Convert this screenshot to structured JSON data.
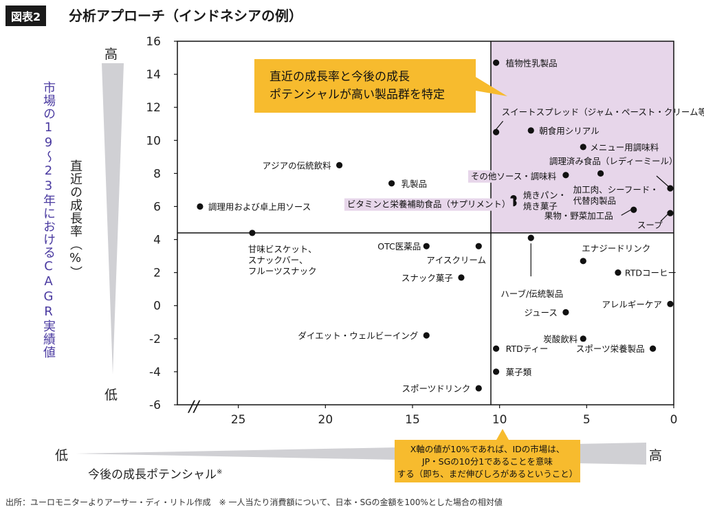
{
  "header": {
    "figure_label": "図表2",
    "title": "分析アプローチ（インドネシアの例）"
  },
  "footer": {
    "text": "出所：ユーロモニターよりアーサー・ディ・リトル作成　※ 一人当たり消費額について、日本・SGの金額を100%とした場合の相対値"
  },
  "chart_data": {
    "type": "scatter",
    "ylabel": "直近の成長率（%）",
    "ylabel_outer": "市場の19〜23年におけるCAGR実績値",
    "xlabel": "今後の成長ポテンシャル",
    "xlabel_note": "※",
    "xlim": [
      28,
      0
    ],
    "ylim": [
      -6,
      16
    ],
    "x_reversed": true,
    "x_ticks": [
      25,
      20,
      15,
      10,
      5,
      0
    ],
    "y_ticks": [
      16,
      14,
      12,
      10,
      8,
      6,
      4,
      2,
      0,
      -2,
      -4,
      -6
    ],
    "axis_break": "//",
    "y_high": "高",
    "y_low": "低",
    "x_low": "低",
    "x_high": "高",
    "grid": false,
    "divider_x": 10.5,
    "divider_y": 4.4,
    "highlight_quadrant": "top-right",
    "highlight_color": "#e7d6ea",
    "point_color": "#111111",
    "callout_color": "#f7bb2e",
    "callouts": [
      "直近の成長率と今後の成長ポテンシャルが高い製品群を特定",
      "X軸の値が10%であれば、IDの市場は、JP・SGの10分1であることを意味する（即ち、まだ伸びしろがあるということ）"
    ],
    "points": [
      {
        "name": "植物性乳製品",
        "x": 10.2,
        "y": 14.7
      },
      {
        "name": "スイートスプレッド（ジャム・ペースト・クリーム等）",
        "x": 10.2,
        "y": 10.5
      },
      {
        "name": "朝食用シリアル",
        "x": 8.2,
        "y": 10.6
      },
      {
        "name": "メニュー用調味料",
        "x": 5.2,
        "y": 9.6
      },
      {
        "name": "調理済み食品（レディーミール）",
        "x": 0.2,
        "y": 7.1
      },
      {
        "name": "その他ソース・調味料",
        "x": 6.2,
        "y": 7.9
      },
      {
        "name": "加工肉、シーフード・代替肉製品",
        "x": 4.2,
        "y": 8.0
      },
      {
        "name": "焼きパン・焼き菓子",
        "x": 9.2,
        "y": 6.5
      },
      {
        "name": "ビタミンと栄養補助食品（サプリメント）",
        "x": 9.2,
        "y": 6.2
      },
      {
        "name": "果物・野菜加工品",
        "x": 2.3,
        "y": 5.8
      },
      {
        "name": "スープ",
        "x": 0.2,
        "y": 5.6
      },
      {
        "name": "アジアの伝統飲料",
        "x": 19.2,
        "y": 8.5
      },
      {
        "name": "乳製品",
        "x": 16.2,
        "y": 7.4
      },
      {
        "name": "調理用および卓上用ソース",
        "x": 27.2,
        "y": 6.0
      },
      {
        "name": "甘味ビスケット、スナックバー、フルーツスナック",
        "x": 24.2,
        "y": 4.4
      },
      {
        "name": "OTC医薬品",
        "x": 14.2,
        "y": 3.6
      },
      {
        "name": "アイスクリーム",
        "x": 11.2,
        "y": 3.6
      },
      {
        "name": "スナック菓子",
        "x": 12.2,
        "y": 1.7
      },
      {
        "name": "ハーブ/伝統製品",
        "x": 8.2,
        "y": 4.1
      },
      {
        "name": "エナジードリンク",
        "x": 5.2,
        "y": 2.7
      },
      {
        "name": "RTDコーヒー",
        "x": 3.2,
        "y": 2.0
      },
      {
        "name": "アレルギーケア",
        "x": 0.2,
        "y": 0.1
      },
      {
        "name": "ジュース",
        "x": 6.2,
        "y": -0.4
      },
      {
        "name": "ダイエット・ウェルビーイング",
        "x": 14.2,
        "y": -1.8
      },
      {
        "name": "炭酸飲料",
        "x": 5.2,
        "y": -2.0
      },
      {
        "name": "スポーツ栄養製品",
        "x": 1.2,
        "y": -2.6
      },
      {
        "name": "RTDティー",
        "x": 10.2,
        "y": -2.6
      },
      {
        "name": "菓子類",
        "x": 10.2,
        "y": -4.0
      },
      {
        "name": "スポーツドリンク",
        "x": 11.2,
        "y": -5.0
      }
    ]
  }
}
